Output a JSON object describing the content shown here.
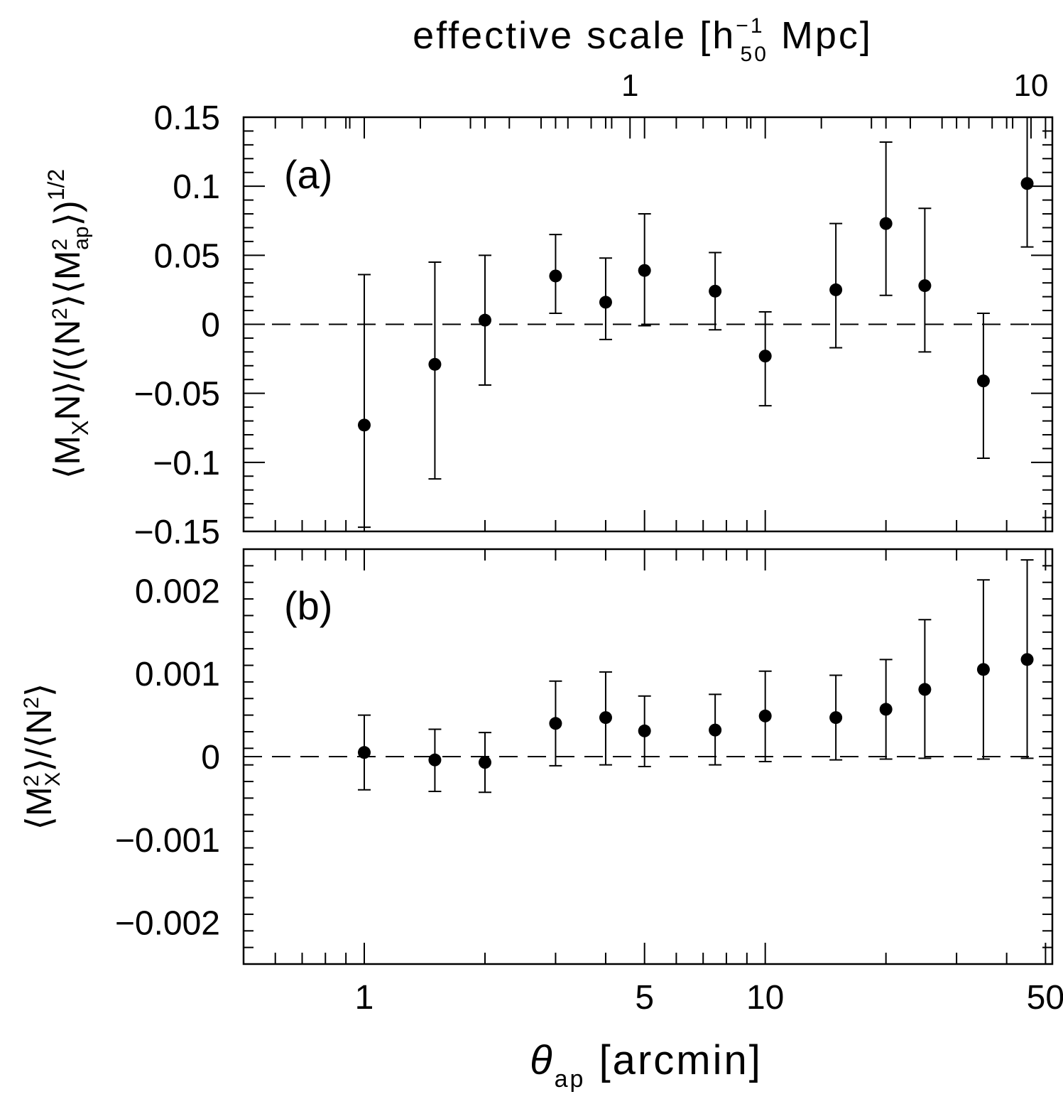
{
  "top_axis": {
    "label": "effective scale [h",
    "label_sup": "−1",
    "label_sub": "50",
    "label_tail": " Mpc]",
    "ticks": [
      {
        "value": 1,
        "label": "1"
      },
      {
        "value": 10,
        "label": "10"
      }
    ]
  },
  "bottom_axis": {
    "label_main": "θ",
    "label_sub": "ap",
    "label_tail": " [arcmin]",
    "ticks": [
      {
        "value": 1,
        "label": "1"
      },
      {
        "value": 5,
        "label": "5"
      },
      {
        "value": 10,
        "label": "10"
      },
      {
        "value": 50,
        "label": "50"
      }
    ]
  },
  "chart_data": [
    {
      "type": "scatter",
      "panel_label": "(a)",
      "ylabel": "⟨MXN⟩/(⟨N²⟩⟨M²ap⟩)^1/2",
      "xscale": "log",
      "xlim": [
        0.5,
        52
      ],
      "ylim": [
        -0.15,
        0.15
      ],
      "yticks": [
        -0.15,
        -0.1,
        -0.05,
        0,
        0.05,
        0.1,
        0.15
      ],
      "ytick_labels": [
        "−0.15",
        "−0.1",
        "−0.05",
        "0",
        "0.05",
        "0.1",
        "0.15"
      ],
      "reference_line": {
        "y": 0,
        "style": "dashed"
      },
      "x": [
        1.0,
        1.5,
        2.0,
        3.0,
        4.0,
        5.0,
        7.5,
        10.0,
        15.0,
        20.0,
        25.0,
        35.0,
        45.0
      ],
      "y": [
        -0.073,
        -0.029,
        0.003,
        0.035,
        0.016,
        0.039,
        0.024,
        -0.023,
        0.025,
        0.073,
        0.028,
        -0.041,
        0.102
      ],
      "y_low": [
        -0.147,
        -0.112,
        -0.044,
        0.008,
        -0.011,
        -0.001,
        -0.004,
        -0.059,
        -0.017,
        0.021,
        -0.02,
        -0.097,
        0.056
      ],
      "y_high": [
        0.036,
        0.045,
        0.05,
        0.065,
        0.048,
        0.08,
        0.052,
        0.009,
        0.073,
        0.132,
        0.084,
        0.008,
        0.15
      ]
    },
    {
      "type": "scatter",
      "panel_label": "(b)",
      "ylabel": "⟨M²X⟩/⟨N²⟩",
      "xscale": "log",
      "xlim": [
        0.5,
        52
      ],
      "ylim": [
        -0.0025,
        0.0025
      ],
      "yticks": [
        -0.002,
        -0.001,
        0,
        0.001,
        0.002
      ],
      "ytick_labels": [
        "−0.002",
        "−0.001",
        "0",
        "0.001",
        "0.002"
      ],
      "reference_line": {
        "y": 0,
        "style": "dashed"
      },
      "x": [
        1.0,
        1.5,
        2.0,
        3.0,
        4.0,
        5.0,
        7.5,
        10.0,
        15.0,
        20.0,
        25.0,
        35.0,
        45.0
      ],
      "y": [
        5e-05,
        -4e-05,
        -7e-05,
        0.0004,
        0.00047,
        0.00031,
        0.00032,
        0.00049,
        0.00047,
        0.00057,
        0.00081,
        0.00105,
        0.00117
      ],
      "y_low": [
        -0.0004,
        -0.00042,
        -0.00043,
        -0.00011,
        -0.0001,
        -0.00012,
        -0.0001,
        -6e-05,
        -4e-05,
        -3e-05,
        -2e-05,
        -3e-05,
        -2e-05
      ],
      "y_high": [
        0.0005,
        0.00033,
        0.00029,
        0.00091,
        0.00102,
        0.00073,
        0.00075,
        0.00103,
        0.00098,
        0.00117,
        0.00165,
        0.00213,
        0.00237
      ]
    }
  ]
}
